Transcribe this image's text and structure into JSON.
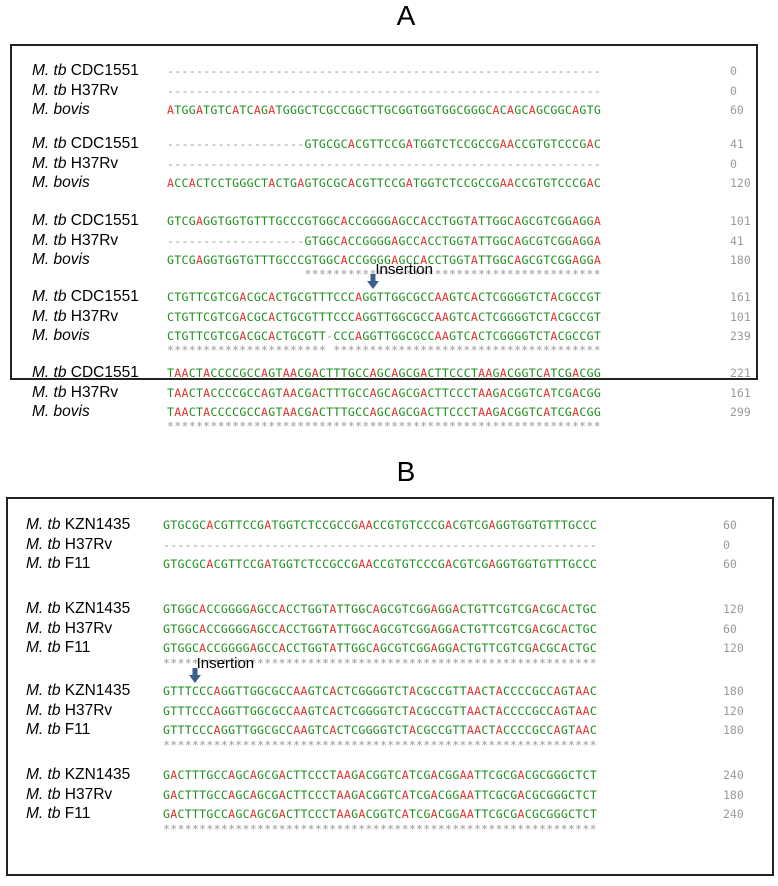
{
  "panels": [
    {
      "letter": "A",
      "insertion_label": "Insertion",
      "blocks": [
        {
          "rows": [
            {
              "species": "M. tb",
              "strain": "CDC1551",
              "seq": "------------------------------------------------------------",
              "pos": "0"
            },
            {
              "species": "M. tb",
              "strain": "H37Rv",
              "seq": "------------------------------------------------------------",
              "pos": "0"
            },
            {
              "species": "M. bovis",
              "strain": "",
              "seq": "ATGGATGTCATCAGATGGGCTCGCCGGCTTGCGGTGGTGGCGGGCACAGCAGCGGCAGTG",
              "pos": "60"
            }
          ],
          "consensus": ""
        },
        {
          "rows": [
            {
              "species": "M. tb",
              "strain": "CDC1551",
              "seq": "-------------------GTGCGCACGTTCCGATGGTCTCCGCCGAACCGTGTCCCGAC",
              "pos": "41"
            },
            {
              "species": "M. tb",
              "strain": "H37Rv",
              "seq": "------------------------------------------------------------",
              "pos": "0"
            },
            {
              "species": "M. bovis",
              "strain": "",
              "seq": "ACCACTCCTGGGCTACTGAGTGCGCACGTTCCGATGGTCTCCGCCGAACCGTGTCCCGAC",
              "pos": "120"
            }
          ],
          "consensus": ""
        },
        {
          "rows": [
            {
              "species": "M. tb",
              "strain": "CDC1551",
              "seq": "GTCGAGGTGGTGTTTGCCCGTGGCACCGGGGAGCCACCTGGTATTGGCAGCGTCGGAGGA",
              "pos": "101"
            },
            {
              "species": "M. tb",
              "strain": "H37Rv",
              "seq": "-------------------GTGGCACCGGGGAGCCACCTGGTATTGGCAGCGTCGGAGGA",
              "pos": "41"
            },
            {
              "species": "M. bovis",
              "strain": "",
              "seq": "GTCGAGGTGGTGTTTGCCCGTGGCACCGGGGAGCCACCTGGTATTGGCAGCGTCGGAGGA",
              "pos": "180"
            }
          ],
          "consensus": "                   *****************************************"
        },
        {
          "rows": [
            {
              "species": "M. tb",
              "strain": "CDC1551",
              "seq": "CTGTTCGTCGACGCACTGCGTTTCCCAGGTTGGCGCCAAGTCACTCGGGGTCTACGCCGT",
              "pos": "161"
            },
            {
              "species": "M. tb",
              "strain": "H37Rv",
              "seq": "CTGTTCGTCGACGCACTGCGTTTCCCAGGTTGGCGCCAAGTCACTCGGGGTCTACGCCGT",
              "pos": "101"
            },
            {
              "species": "M. bovis",
              "strain": "",
              "seq": "CTGTTCGTCGACGCACTGCGTT-CCCAGGTTGGCGCCAAGTCACTCGGGGTCTACGCCGT",
              "pos": "239"
            }
          ],
          "consensus": "********************** *************************************",
          "insertion_col": 22
        },
        {
          "rows": [
            {
              "species": "M. tb",
              "strain": "CDC1551",
              "seq": "TAACTACCCCGCCAGTAACGACTTTGCCAGCAGCGACTTCCCTAAGACGGTCATCGACGG",
              "pos": "221"
            },
            {
              "species": "M. tb",
              "strain": "H37Rv",
              "seq": "TAACTACCCCGCCAGTAACGACTTTGCCAGCAGCGACTTCCCTAAGACGGTCATCGACGG",
              "pos": "161"
            },
            {
              "species": "M. bovis",
              "strain": "",
              "seq": "TAACTACCCCGCCAGTAACGACTTTGCCAGCAGCGACTTCCCTAAGACGGTCATCGACGG",
              "pos": "299"
            }
          ],
          "consensus": "************************************************************"
        }
      ]
    },
    {
      "letter": "B",
      "insertion_label": "Insertion",
      "blocks": [
        {
          "rows": [
            {
              "species": "M. tb",
              "strain": "KZN1435",
              "seq": "GTGCGCACGTTCCGATGGTCTCCGCCGAACCGTGTCCCGACGTCGAGGTGGTGTTTGCCC",
              "pos": "60"
            },
            {
              "species": "M. tb",
              "strain": "H37Rv",
              "seq": "------------------------------------------------------------",
              "pos": "0"
            },
            {
              "species": "M. tb",
              "strain": "F11",
              "seq": "GTGCGCACGTTCCGATGGTCTCCGCCGAACCGTGTCCCGACGTCGAGGTGGTGTTTGCCC",
              "pos": "60"
            }
          ],
          "consensus": ""
        },
        {
          "rows": [
            {
              "species": "M. tb",
              "strain": "KZN1435",
              "seq": "GTGGCACCGGGGAGCCACCTGGTATTGGCAGCGTCGGAGGACTGTTCGTCGACGCACTGC",
              "pos": "120"
            },
            {
              "species": "M. tb",
              "strain": "H37Rv",
              "seq": "GTGGCACCGGGGAGCCACCTGGTATTGGCAGCGTCGGAGGACTGTTCGTCGACGCACTGC",
              "pos": "60"
            },
            {
              "species": "M. tb",
              "strain": "F11",
              "seq": "GTGGCACCGGGGAGCCACCTGGTATTGGCAGCGTCGGAGGACTGTTCGTCGACGCACTGC",
              "pos": "120"
            }
          ],
          "consensus": "************************************************************"
        },
        {
          "rows": [
            {
              "species": "M. tb",
              "strain": "KZN1435",
              "seq": "GTTTCCCAGGTTGGCGCCAAGTCACTCGGGGTCTACGCCGTTAACTACCCCGCCAGTAAC",
              "pos": "180"
            },
            {
              "species": "M. tb",
              "strain": "H37Rv",
              "seq": "GTTTCCCAGGTTGGCGCCAAGTCACTCGGGGTCTACGCCGTTAACTACCCCGCCAGTAAC",
              "pos": "120"
            },
            {
              "species": "M. tb",
              "strain": "F11",
              "seq": "GTTTCCCAGGTTGGCGCCAAGTCACTCGGGGTCTACGCCGTTAACTACCCCGCCAGTAAC",
              "pos": "180"
            }
          ],
          "consensus": "************************************************************",
          "insertion_col": 3
        },
        {
          "rows": [
            {
              "species": "M. tb",
              "strain": "KZN1435",
              "seq": "GACTTTGCCAGCAGCGACTTCCCTAAGACGGTCATCGACGGAATTCGCGACGCGGGCTCT",
              "pos": "240"
            },
            {
              "species": "M. tb",
              "strain": "H37Rv",
              "seq": "GACTTTGCCAGCAGCGACTTCCCTAAGACGGTCATCGACGGAATTCGCGACGCGGGCTCT",
              "pos": "180"
            },
            {
              "species": "M. tb",
              "strain": "F11",
              "seq": "GACTTTGCCAGCAGCGACTTCCCTAAGACGGTCATCGACGGAATTCGCGACGCGGGCTCT",
              "pos": "240"
            }
          ],
          "consensus": "************************************************************"
        }
      ]
    }
  ],
  "colors": {
    "base": "#1b8f1b",
    "highlight_A": "#e53030",
    "gap": "#9a9a9a",
    "arrow": "#3d5e8c"
  }
}
